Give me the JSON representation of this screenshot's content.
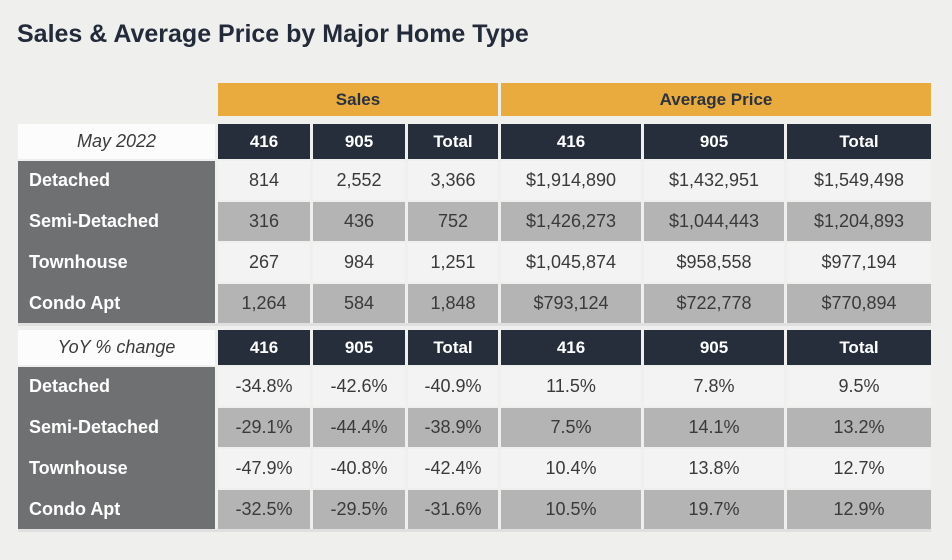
{
  "chart_data": {
    "type": "table",
    "title": "Sales & Average Price by Major Home Type",
    "column_groups": [
      "Sales",
      "Average Price"
    ],
    "tables": [
      {
        "corner_label": "May 2022",
        "columns": [
          "416",
          "905",
          "Total",
          "416",
          "905",
          "Total"
        ],
        "rows": [
          {
            "label": "Detached",
            "values": [
              "814",
              "2,552",
              "3,366",
              "$1,914,890",
              "$1,432,951",
              "$1,549,498"
            ]
          },
          {
            "label": "Semi-Detached",
            "values": [
              "316",
              "436",
              "752",
              "$1,426,273",
              "$1,044,443",
              "$1,204,893"
            ]
          },
          {
            "label": "Townhouse",
            "values": [
              "267",
              "984",
              "1,251",
              "$1,045,874",
              "$958,558",
              "$977,194"
            ]
          },
          {
            "label": "Condo Apt",
            "values": [
              "1,264",
              "584",
              "1,848",
              "$793,124",
              "$722,778",
              "$770,894"
            ]
          }
        ]
      },
      {
        "corner_label": "YoY % change",
        "columns": [
          "416",
          "905",
          "Total",
          "416",
          "905",
          "Total"
        ],
        "rows": [
          {
            "label": "Detached",
            "values": [
              "-34.8%",
              "-42.6%",
              "-40.9%",
              "11.5%",
              "7.8%",
              "9.5%"
            ]
          },
          {
            "label": "Semi-Detached",
            "values": [
              "-29.1%",
              "-44.4%",
              "-38.9%",
              "7.5%",
              "14.1%",
              "13.2%"
            ]
          },
          {
            "label": "Townhouse",
            "values": [
              "-47.9%",
              "-40.8%",
              "-42.4%",
              "10.4%",
              "13.8%",
              "12.7%"
            ]
          },
          {
            "label": "Condo Apt",
            "values": [
              "-32.5%",
              "-29.5%",
              "-31.6%",
              "10.5%",
              "19.7%",
              "12.9%"
            ]
          }
        ]
      }
    ]
  },
  "colors": {
    "accent_gold": "#EAAB3E",
    "header_navy": "#262E3C",
    "row_label_gray": "#6F7072",
    "alt_row_gray": "#B4B4B4",
    "light_row": "#F3F3F3",
    "page_background": "#EFEFEE",
    "title_text": "#232B3A"
  }
}
